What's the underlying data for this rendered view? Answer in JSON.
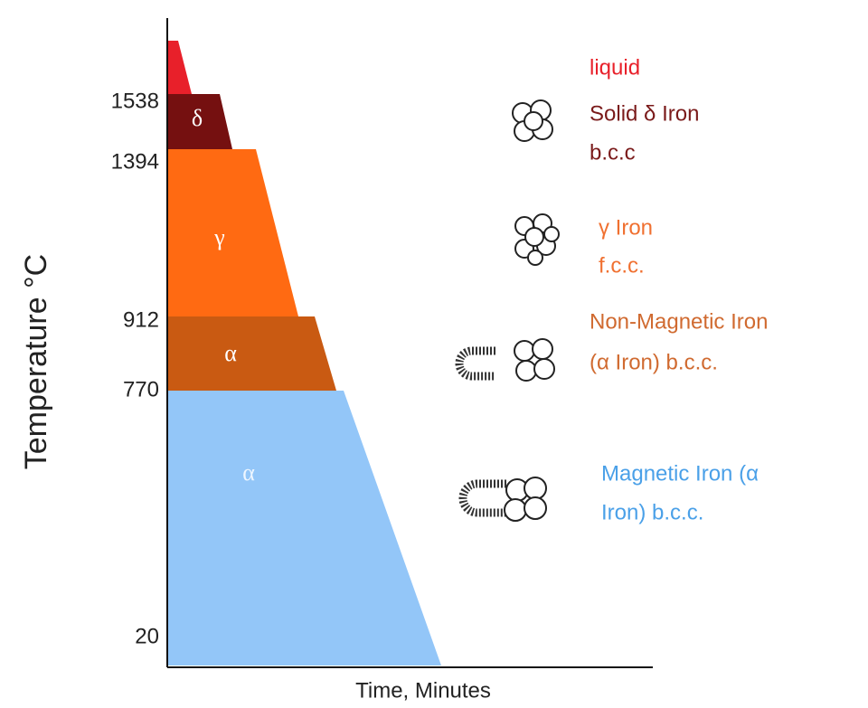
{
  "diagram": {
    "y_axis_label": "Temperature °C",
    "x_axis_label": "Time, Minutes",
    "y_ticks": [
      "1538",
      "1394",
      "912",
      "770",
      "20"
    ],
    "phases": [
      {
        "symbol": "δ"
      },
      {
        "symbol": "γ"
      },
      {
        "symbol": "α"
      },
      {
        "symbol": "α"
      }
    ],
    "annotations": [
      {
        "lines": [
          "liquid"
        ]
      },
      {
        "lines": [
          "Solid δ Iron",
          "b.c.c"
        ]
      },
      {
        "lines": [
          "γ Iron",
          "f.c.c."
        ]
      },
      {
        "lines": [
          "Non-Magnetic Iron",
          "(α Iron) b.c.c."
        ]
      },
      {
        "lines": [
          "Magnetic Iron (α",
          "Iron) b.c.c."
        ]
      }
    ]
  }
}
